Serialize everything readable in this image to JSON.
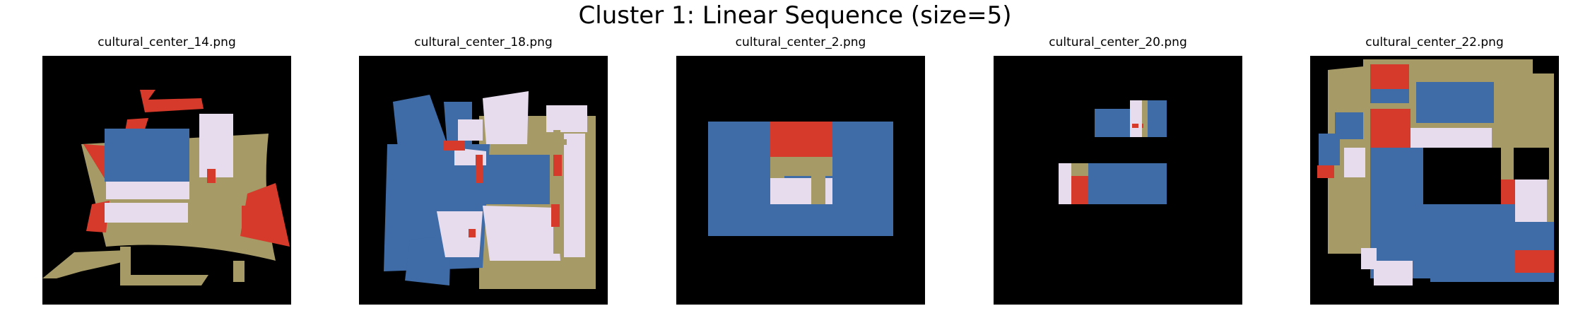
{
  "figure": {
    "title": "Cluster 1: Linear Sequence (size=5)"
  },
  "panels": [
    {
      "filename": "cultural_center_14.png"
    },
    {
      "filename": "cultural_center_18.png"
    },
    {
      "filename": "cultural_center_2.png"
    },
    {
      "filename": "cultural_center_20.png"
    },
    {
      "filename": "cultural_center_22.png"
    }
  ],
  "colors": {
    "background": "#000000",
    "blue": "#3f6ba6",
    "red": "#d63a2a",
    "lavender": "#e6dcee",
    "tan": "#a69a67"
  }
}
